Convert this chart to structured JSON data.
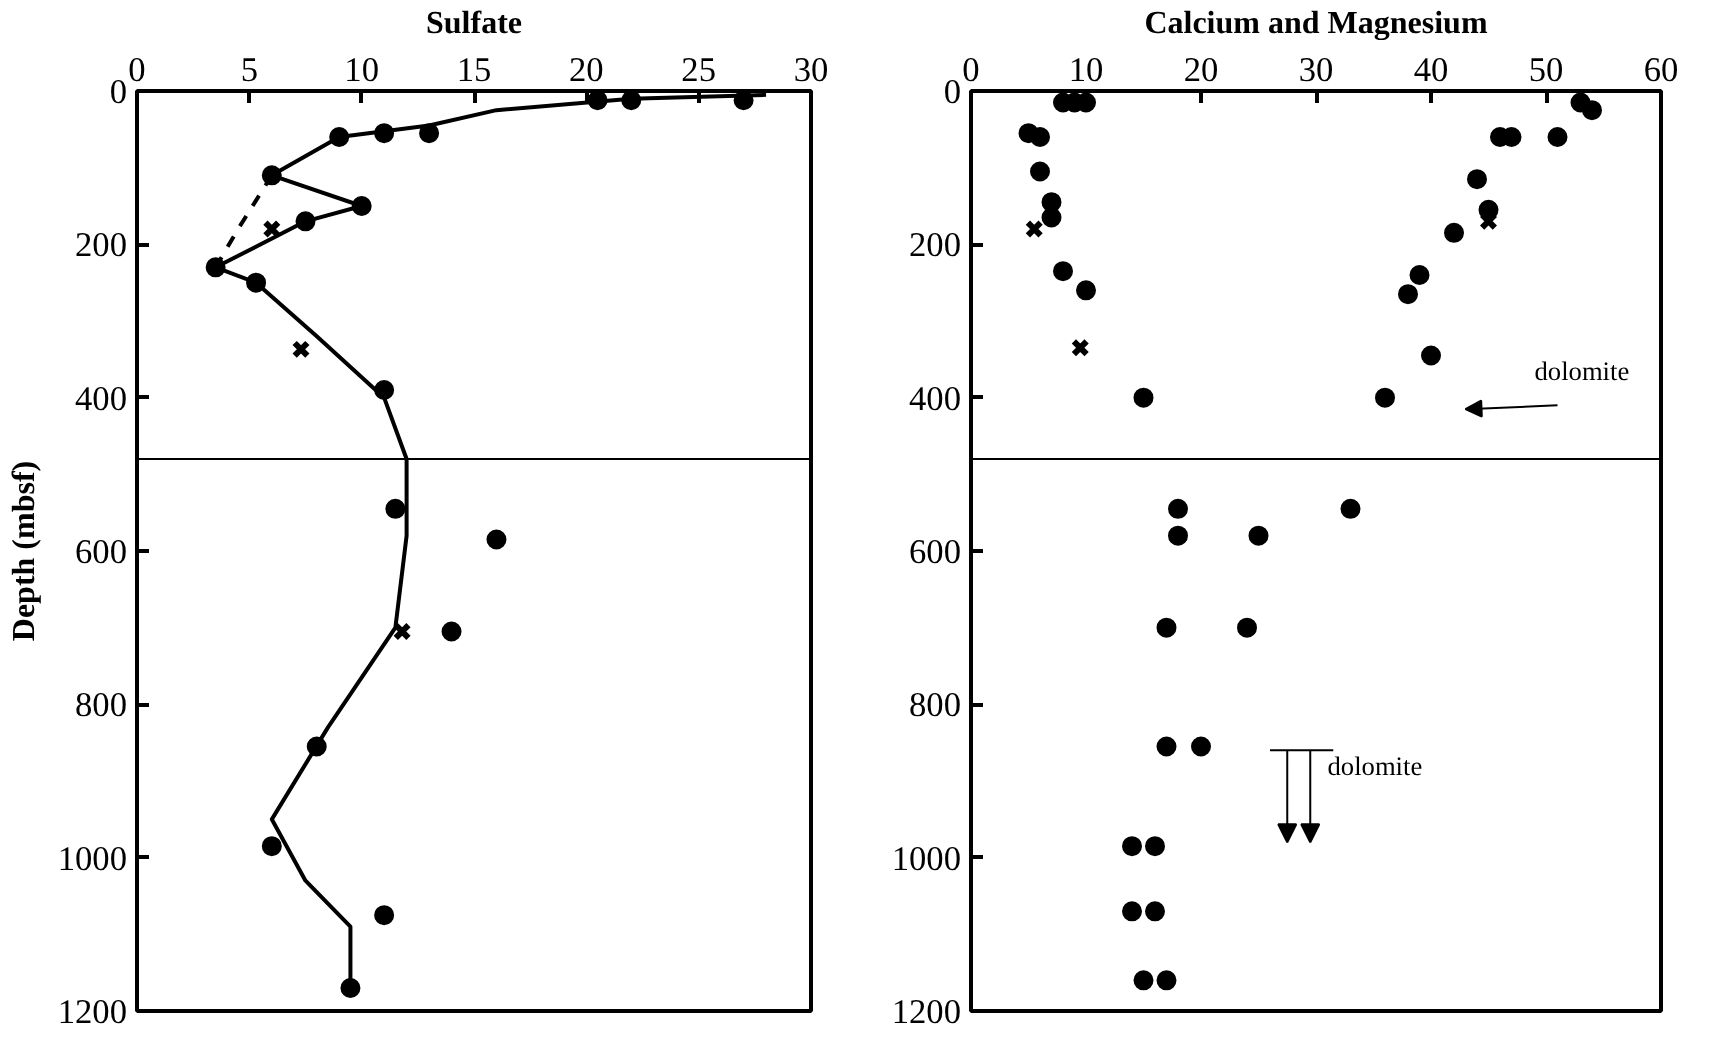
{
  "chart_data": [
    {
      "type": "scatter",
      "xlabel": "Sulfate",
      "ylabel": "Depth (mbsf)",
      "xlim": [
        0,
        30
      ],
      "xticks": [
        0,
        5,
        10,
        15,
        20,
        25,
        30
      ],
      "ylim": [
        1200,
        0
      ],
      "yticks": [
        0,
        200,
        400,
        600,
        800,
        1000,
        1200
      ],
      "grid": false,
      "ref_lines": [
        {
          "axis": "y",
          "value": 480
        }
      ],
      "series": [
        {
          "marker": "circle",
          "color": "#000000",
          "x": [
            20.5,
            22,
            27,
            9,
            11,
            13,
            6,
            10,
            7.5,
            3.5,
            5.3,
            11,
            11.5,
            16,
            14,
            8,
            6,
            11,
            9.5
          ],
          "values": [
            12,
            12,
            12,
            60,
            55,
            55,
            110,
            150,
            170,
            230,
            250,
            390,
            545,
            585,
            705,
            855,
            985,
            1075,
            1170
          ]
        },
        {
          "marker": "cross",
          "color": "#000000",
          "x": [
            6,
            7.3,
            11.8
          ],
          "values": [
            180,
            337,
            705
          ]
        },
        {
          "type": "line",
          "line_style": "solid",
          "color": "#000000",
          "x": [
            28,
            22,
            16,
            13,
            9,
            6,
            10,
            7.5,
            3.5,
            5.3,
            8,
            11,
            12,
            12,
            11.5,
            8.5,
            6,
            7.5,
            9.5,
            9.5
          ],
          "values": [
            5,
            10,
            25,
            45,
            60,
            110,
            150,
            170,
            230,
            250,
            320,
            400,
            480,
            580,
            700,
            830,
            950,
            1030,
            1090,
            1160
          ]
        },
        {
          "type": "line",
          "line_style": "dashed",
          "color": "#000000",
          "x": [
            6,
            4.5,
            3.5
          ],
          "values": [
            110,
            180,
            230
          ]
        }
      ]
    },
    {
      "type": "scatter",
      "xlabel": "Calcium and Magnesium",
      "xlim": [
        0,
        60
      ],
      "xticks": [
        0,
        10,
        20,
        30,
        40,
        50,
        60
      ],
      "ylim": [
        1200,
        0
      ],
      "yticks": [
        0,
        200,
        400,
        600,
        800,
        1000,
        1200
      ],
      "grid": false,
      "ref_lines": [
        {
          "axis": "y",
          "value": 480
        }
      ],
      "annotations": [
        "dolomite",
        "dolomite"
      ],
      "series": [
        {
          "marker": "circle",
          "color": "#000000",
          "x": [
            8,
            9,
            10,
            5,
            6,
            6,
            7,
            7,
            8,
            10,
            15,
            18,
            18,
            17,
            17,
            14,
            16,
            14,
            16,
            15,
            17,
            53,
            54,
            51,
            46,
            47,
            44,
            45,
            42,
            39,
            38,
            40,
            36,
            33,
            25,
            24,
            20
          ],
          "values": [
            15,
            15,
            15,
            55,
            60,
            105,
            145,
            165,
            235,
            260,
            400,
            545,
            580,
            700,
            855,
            985,
            985,
            1070,
            1070,
            1160,
            1160,
            15,
            25,
            60,
            60,
            60,
            115,
            155,
            185,
            240,
            265,
            345,
            400,
            545,
            580,
            700,
            855
          ]
        },
        {
          "marker": "cross",
          "color": "#000000",
          "x": [
            5.5,
            9.5,
            45
          ],
          "values": [
            180,
            335,
            170
          ]
        }
      ]
    }
  ]
}
